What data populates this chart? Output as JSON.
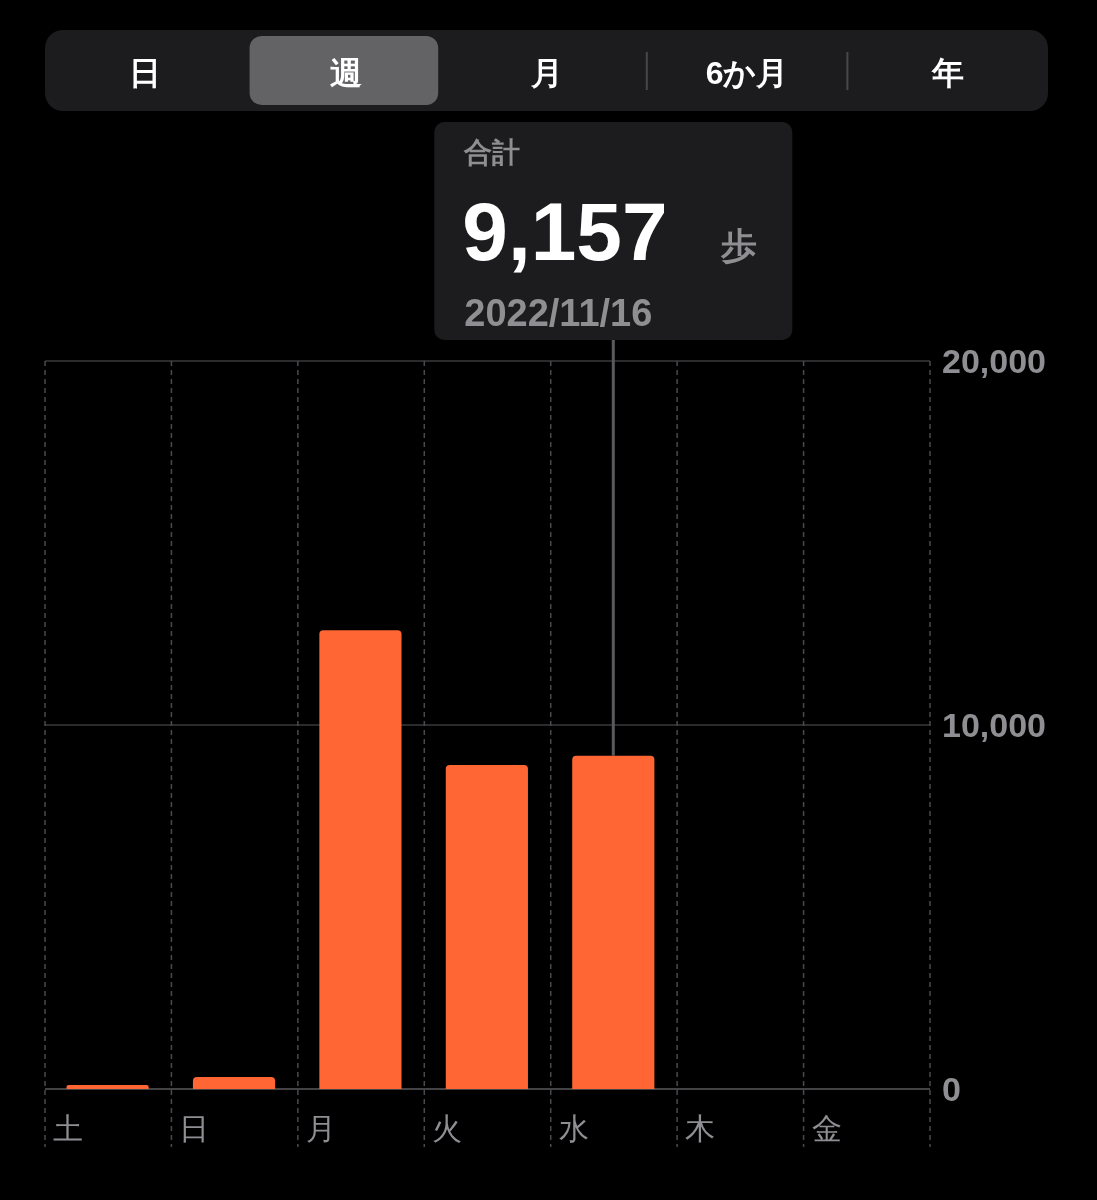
{
  "chart_data": {
    "type": "bar",
    "categories": [
      "土",
      "日",
      "月",
      "火",
      "水",
      "木",
      "金"
    ],
    "values": [
      110,
      330,
      12600,
      8900,
      9157,
      null,
      null
    ],
    "color": "#ff6633",
    "ylim": [
      0,
      20000
    ],
    "yticks": [
      0,
      {
        "value": 10000,
        "label": "10,000"
      },
      {
        "value": 20000,
        "label": "20,000"
      }
    ],
    "grid": true,
    "annotations": [
      "日",
      "週",
      "月",
      "6か月",
      "年",
      "合計",
      "9,157",
      "歩",
      "2022/11/16"
    ]
  }
}
